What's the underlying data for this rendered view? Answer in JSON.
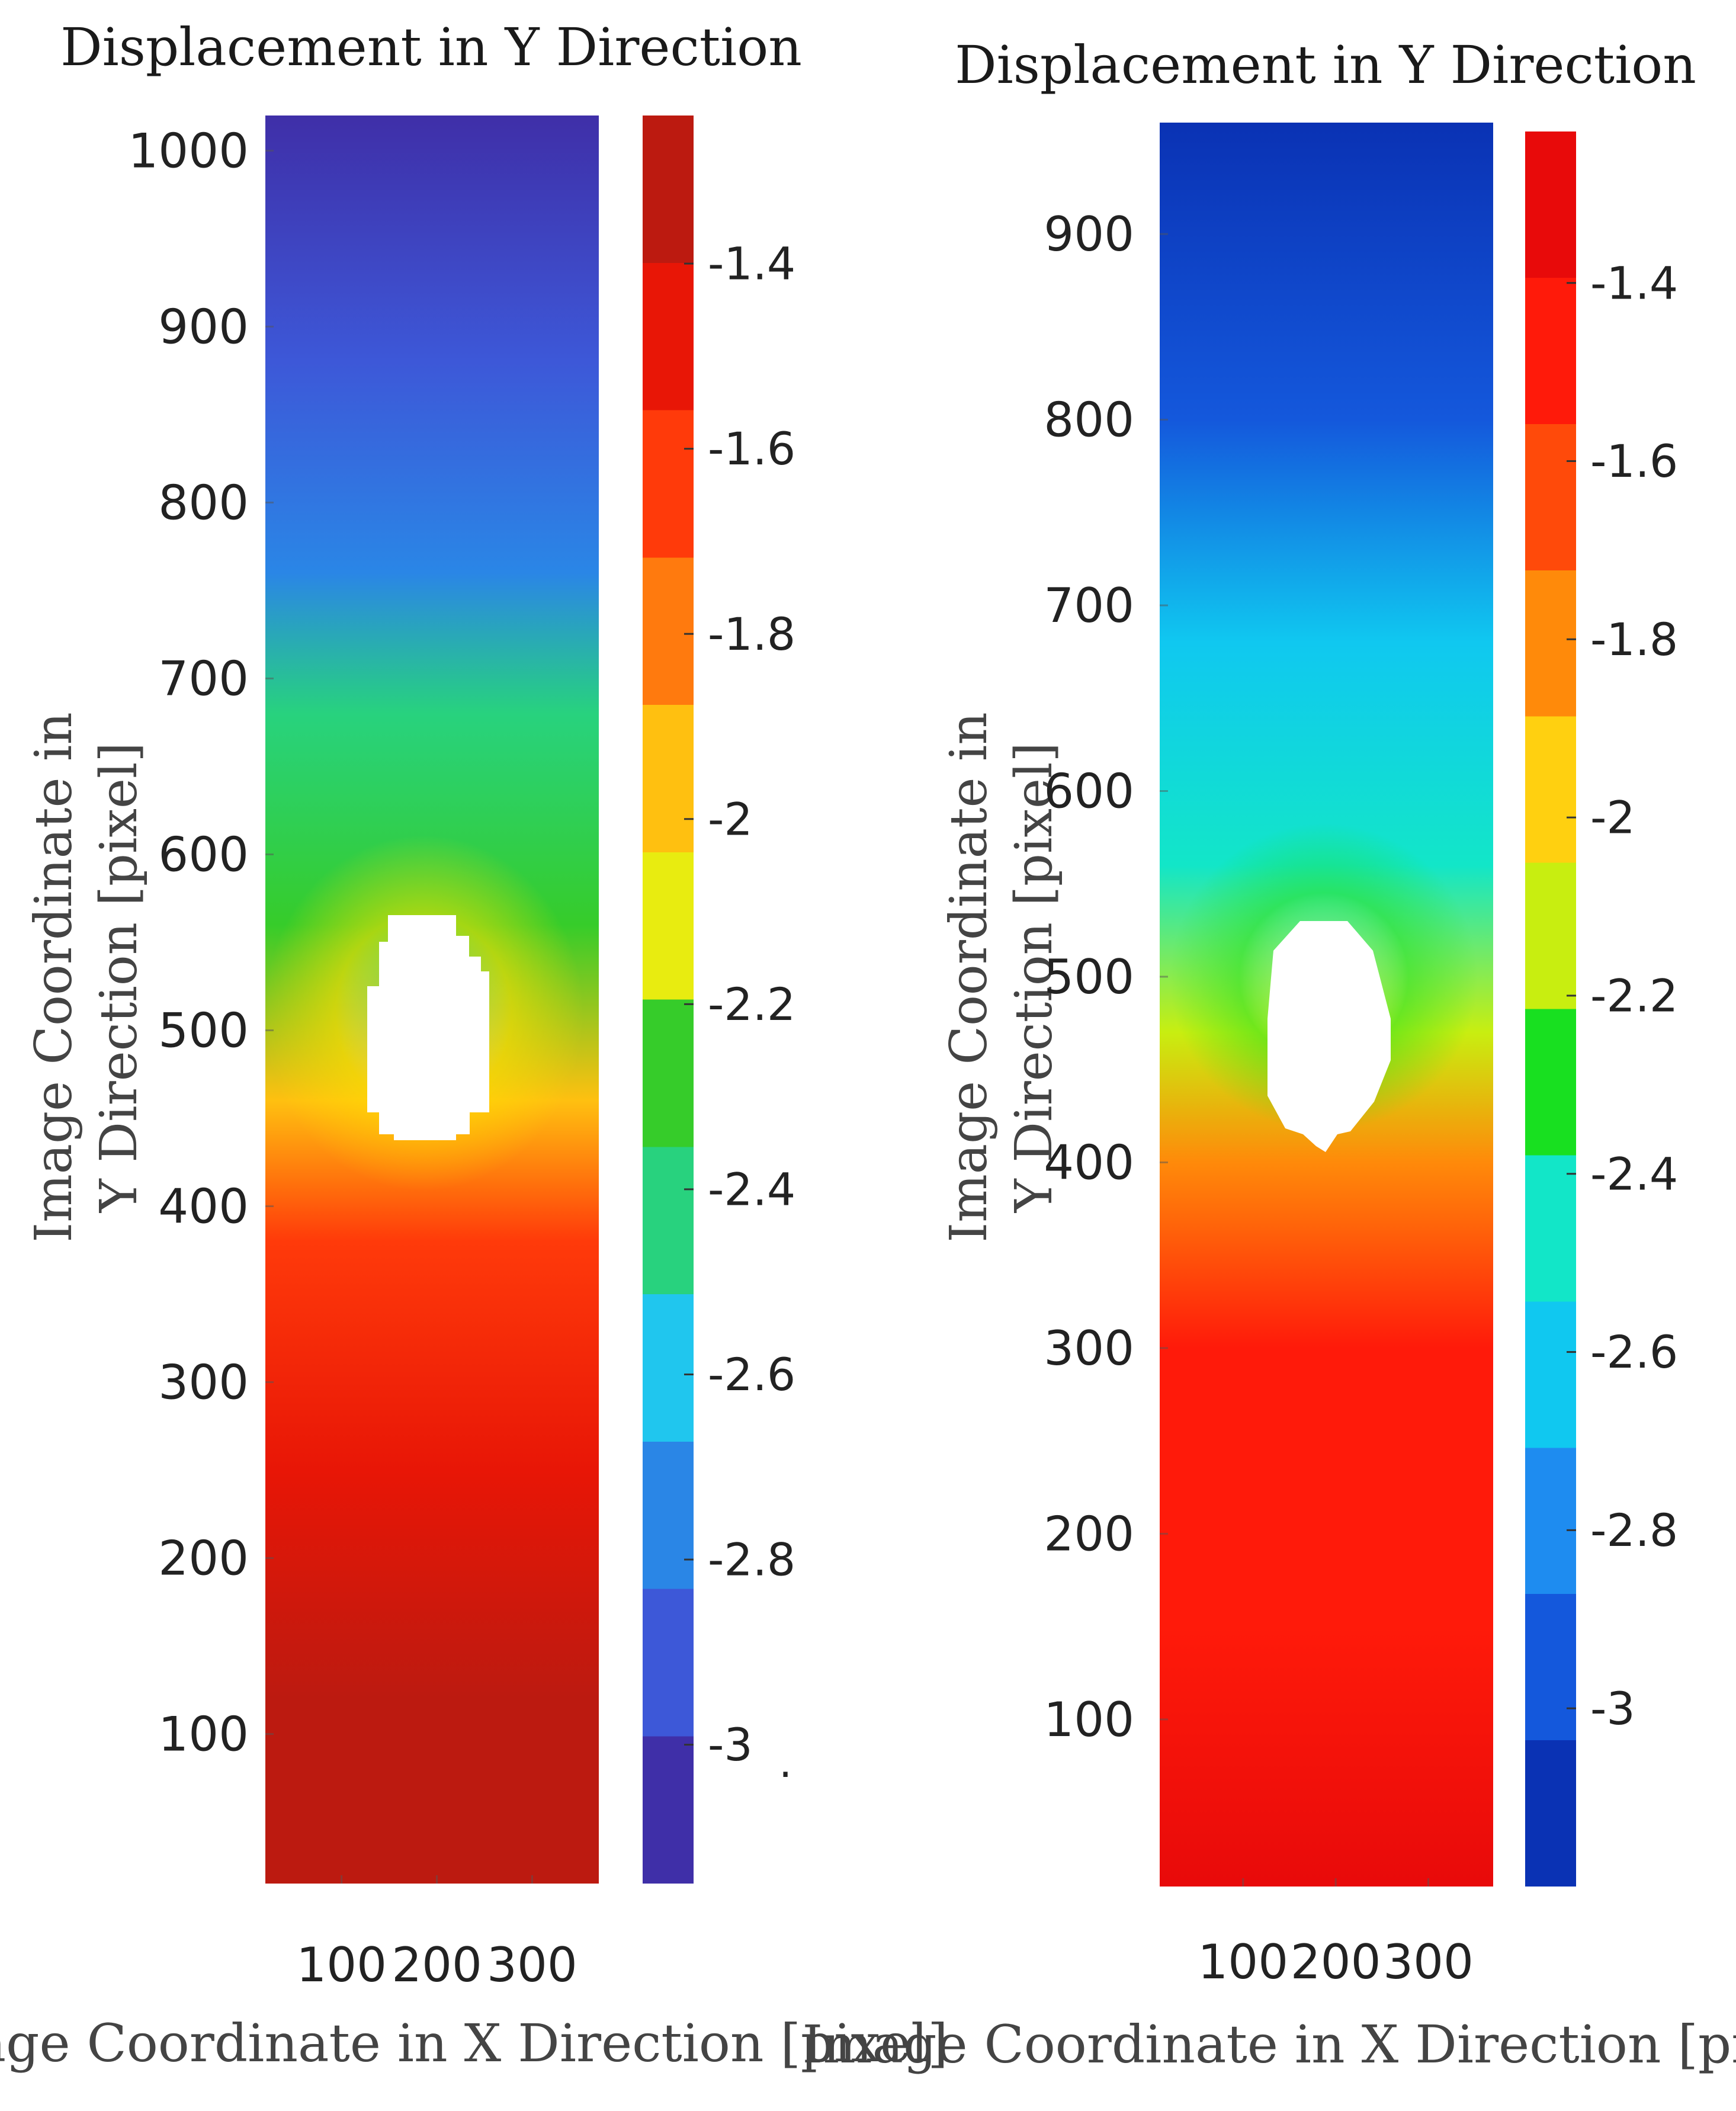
{
  "chart_data": [
    {
      "type": "heatmap",
      "title": "Displacement in Y Direction",
      "xlabel": "Image Coordinate in X Direction [pixel]",
      "ylabel_lines": [
        "Image Coordinate in",
        "Y Direction [pixel]"
      ],
      "xlim": [
        20,
        370
      ],
      "ylim": [
        15,
        1020
      ],
      "xticks": [
        100,
        200,
        300
      ],
      "yticks": [
        100,
        200,
        300,
        400,
        500,
        600,
        700,
        800,
        900,
        1000
      ],
      "colorbar": {
        "range": [
          -3.15,
          -1.24
        ],
        "ticks": [
          -1.4,
          -1.6,
          -1.8,
          -2,
          -2.2,
          -2.4,
          -2.6,
          -2.8,
          -3
        ],
        "tick_labels": [
          "-1.4",
          "-1.6",
          "-1.8",
          "-2",
          "-2.2",
          "-2.4",
          "-2.6",
          "-2.8",
          "-3"
        ],
        "colors": [
          "#3f2fa8",
          "#3d58d8",
          "#2a86e6",
          "#20c6ee",
          "#28d27e",
          "#36cc2a",
          "#e8ec10",
          "#ffc010",
          "#ff7a0e",
          "#ff3a0a",
          "#e81606",
          "#bc1a10"
        ]
      },
      "field_profile": [
        {
          "y": 15,
          "value": -1.26
        },
        {
          "y": 120,
          "value": -1.38
        },
        {
          "y": 250,
          "value": -1.5
        },
        {
          "y": 380,
          "value": -1.65
        },
        {
          "y": 460,
          "value": -1.95
        },
        {
          "y": 560,
          "value": -2.2
        },
        {
          "y": 680,
          "value": -2.5
        },
        {
          "y": 760,
          "value": -2.75
        },
        {
          "y": 880,
          "value": -2.95
        },
        {
          "y": 1020,
          "value": -3.1
        }
      ],
      "hole": {
        "center_x": 185,
        "center_y": 500,
        "radius_x": 35,
        "radius_y": 62
      },
      "stray_mark": "."
    },
    {
      "type": "heatmap",
      "title": "Displacement in Y Direction",
      "xlabel": "Image Coordinate in X Direction [pixel]",
      "ylabel_lines": [
        "Image Coordinate in",
        "Y Direction [pixel]"
      ],
      "xlim": [
        10,
        370
      ],
      "ylim": [
        10,
        960
      ],
      "xticks": [
        100,
        200,
        300
      ],
      "yticks": [
        100,
        200,
        300,
        400,
        500,
        600,
        700,
        800,
        900
      ],
      "colorbar": {
        "range": [
          -3.2,
          -1.23
        ],
        "ticks": [
          -1.4,
          -1.6,
          -1.8,
          -2,
          -2.2,
          -2.4,
          -2.6,
          -2.8,
          -3
        ],
        "tick_labels": [
          "-1.4",
          "-1.6",
          "-1.8",
          "-2",
          "-2.2",
          "-2.4",
          "-2.6",
          "-2.8",
          "-3"
        ],
        "colors": [
          "#0a32b4",
          "#1458dc",
          "#1e8cf0",
          "#10c8f0",
          "#12e6c8",
          "#18e020",
          "#c8ee10",
          "#ffd010",
          "#ff8a0a",
          "#ff4a0a",
          "#ff1a0a",
          "#e80a0a"
        ]
      },
      "field_profile": [
        {
          "y": 10,
          "value": -1.27
        },
        {
          "y": 150,
          "value": -1.4
        },
        {
          "y": 300,
          "value": -1.55
        },
        {
          "y": 400,
          "value": -1.8
        },
        {
          "y": 470,
          "value": -2.1
        },
        {
          "y": 560,
          "value": -2.45
        },
        {
          "y": 680,
          "value": -2.6
        },
        {
          "y": 800,
          "value": -2.9
        },
        {
          "y": 960,
          "value": -3.15
        }
      ],
      "hole": {
        "center_x": 180,
        "center_y": 460,
        "radius_x": 35,
        "radius_y": 52
      }
    }
  ]
}
